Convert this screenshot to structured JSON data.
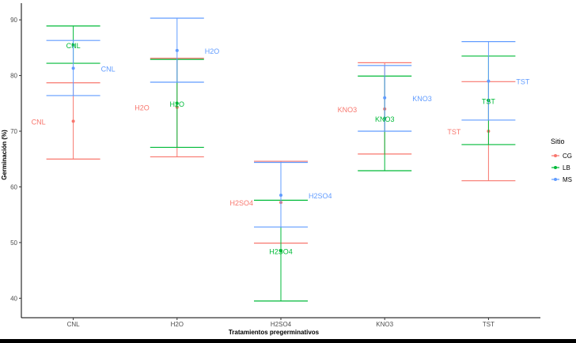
{
  "chart_data": {
    "type": "errorbar",
    "xlabel": "Tratamientos pregerminativos",
    "ylabel": "Germinación (%)",
    "categories": [
      "CNL",
      "H2O",
      "H2SO4",
      "KNO3",
      "TST"
    ],
    "ylim": [
      36.5,
      93
    ],
    "yticks": [
      40,
      50,
      60,
      70,
      80,
      90
    ],
    "grid": false,
    "legend": {
      "title": "Sitio",
      "position": "right"
    },
    "series": [
      {
        "name": "CG",
        "color": "#F8766D",
        "mean": [
          71.8,
          74.3,
          57.2,
          74.0,
          70.0
        ],
        "lower": [
          65.0,
          65.4,
          49.9,
          65.9,
          61.1
        ],
        "upper": [
          78.7,
          83.1,
          64.6,
          82.3,
          78.9
        ],
        "labels": [
          "CNL",
          "H2O",
          "H2SO4",
          "KNO3",
          "TST"
        ]
      },
      {
        "name": "LB",
        "color": "#00BA38",
        "mean": [
          85.5,
          75.0,
          48.5,
          72.3,
          75.5
        ],
        "lower": [
          82.2,
          67.1,
          39.5,
          62.9,
          67.6
        ],
        "upper": [
          88.9,
          82.9,
          57.6,
          79.9,
          83.5
        ],
        "labels": [
          "CNL",
          "H2O",
          "H2SO4",
          "KNO3",
          "TST"
        ]
      },
      {
        "name": "MS",
        "color": "#619CFF",
        "mean": [
          81.3,
          84.5,
          58.5,
          76.0,
          79.0
        ],
        "lower": [
          76.4,
          78.8,
          52.8,
          70.0,
          72.0
        ],
        "upper": [
          86.3,
          90.3,
          64.4,
          81.8,
          86.1
        ],
        "labels": [
          "CNL",
          "H2O",
          "H2SO4",
          "KNO3",
          "TST"
        ]
      }
    ]
  }
}
